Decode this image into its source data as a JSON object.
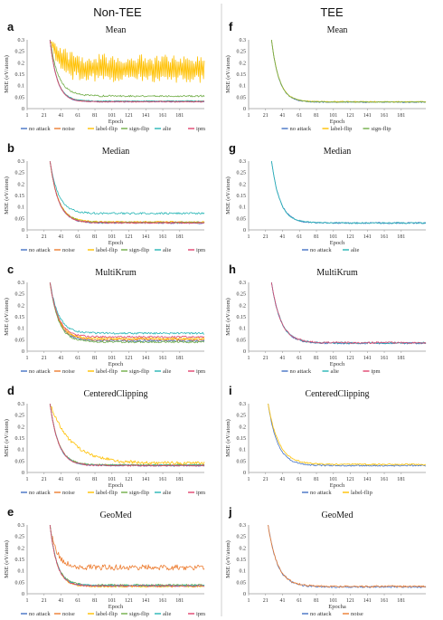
{
  "columns": [
    {
      "title": "Non-TEE"
    },
    {
      "title": "TEE"
    }
  ],
  "colors": {
    "no attack": "#4472c4",
    "noise": "#ed7d31",
    "label-flip": "#ffc000",
    "sign-flip": "#70ad47",
    "alie": "#26b5b5",
    "ipm": "#e0456e"
  },
  "chart_data": [
    {
      "letter": "a",
      "type": "line",
      "title": "Mean",
      "xlabel": "Epoch",
      "ylabel": "MSE (eV/atom)",
      "ylim": [
        0,
        0.3
      ],
      "yticks": [
        "0",
        "0.05",
        "0.1",
        "0.15",
        "0.2",
        "0.25",
        "0.3"
      ],
      "xlim": [
        1,
        210
      ],
      "xticks": [
        "1",
        "21",
        "41",
        "61",
        "81",
        "101",
        "121",
        "141",
        "161",
        "181"
      ],
      "series": [
        {
          "name": "no attack",
          "start": 28,
          "end": 0.03,
          "k": 0.12,
          "noise": 0.002,
          "osc": 0
        },
        {
          "name": "noise",
          "start": 28,
          "end": 0.032,
          "k": 0.12,
          "noise": 0.002,
          "osc": 0
        },
        {
          "name": "label-flip",
          "start": 28,
          "end": 0.175,
          "k": 0.08,
          "noise": 0.01,
          "osc": 0.05
        },
        {
          "name": "sign-flip",
          "start": 28,
          "end": 0.055,
          "k": 0.1,
          "noise": 0.004,
          "osc": 0
        },
        {
          "name": "alie",
          "start": 28,
          "end": 0.033,
          "k": 0.12,
          "noise": 0.002,
          "osc": 0
        },
        {
          "name": "ipm",
          "start": 28,
          "end": 0.03,
          "k": 0.12,
          "noise": 0.002,
          "osc": 0
        }
      ]
    },
    {
      "letter": "b",
      "type": "line",
      "title": "Median",
      "xlabel": "Epoch",
      "ylabel": "MSE (eV/atom)",
      "ylim": [
        0,
        0.3
      ],
      "yticks": [
        "0",
        "0.05",
        "0.1",
        "0.15",
        "0.2",
        "0.25",
        "0.3"
      ],
      "xlim": [
        1,
        210
      ],
      "xticks": [
        "1",
        "21",
        "41",
        "61",
        "81",
        "101",
        "121",
        "141",
        "161",
        "181"
      ],
      "series": [
        {
          "name": "no attack",
          "start": 28,
          "end": 0.03,
          "k": 0.1,
          "noise": 0.003,
          "osc": 0
        },
        {
          "name": "noise",
          "start": 28,
          "end": 0.032,
          "k": 0.1,
          "noise": 0.003,
          "osc": 0
        },
        {
          "name": "label-flip",
          "start": 28,
          "end": 0.035,
          "k": 0.1,
          "noise": 0.003,
          "osc": 0
        },
        {
          "name": "sign-flip",
          "start": 28,
          "end": 0.033,
          "k": 0.1,
          "noise": 0.003,
          "osc": 0
        },
        {
          "name": "alie",
          "start": 28,
          "end": 0.072,
          "k": 0.1,
          "noise": 0.004,
          "osc": 0
        },
        {
          "name": "ipm",
          "start": 28,
          "end": 0.031,
          "k": 0.1,
          "noise": 0.003,
          "osc": 0
        }
      ]
    },
    {
      "letter": "c",
      "type": "line",
      "title": "MultiKrum",
      "xlabel": "Epoch",
      "ylabel": "MSE (eV/atom)",
      "ylim": [
        0,
        0.3
      ],
      "yticks": [
        "0",
        "0.05",
        "0.1",
        "0.15",
        "0.2",
        "0.25",
        "0.3"
      ],
      "xlim": [
        1,
        210
      ],
      "xticks": [
        "1",
        "21",
        "41",
        "61",
        "81",
        "101",
        "121",
        "141",
        "161",
        "181"
      ],
      "series": [
        {
          "name": "no attack",
          "start": 28,
          "end": 0.045,
          "k": 0.1,
          "noise": 0.004,
          "osc": 0
        },
        {
          "name": "noise",
          "start": 28,
          "end": 0.05,
          "k": 0.1,
          "noise": 0.004,
          "osc": 0
        },
        {
          "name": "label-flip",
          "start": 28,
          "end": 0.055,
          "k": 0.1,
          "noise": 0.004,
          "osc": 0
        },
        {
          "name": "sign-flip",
          "start": 28,
          "end": 0.04,
          "k": 0.1,
          "noise": 0.004,
          "osc": 0
        },
        {
          "name": "alie",
          "start": 28,
          "end": 0.078,
          "k": 0.1,
          "noise": 0.004,
          "osc": 0
        },
        {
          "name": "ipm",
          "start": 28,
          "end": 0.062,
          "k": 0.1,
          "noise": 0.004,
          "osc": 0
        }
      ]
    },
    {
      "letter": "d",
      "type": "line",
      "title": "CenteredClipping",
      "xlabel": "Epoch",
      "ylabel": "MSE (eV/atom)",
      "ylim": [
        0,
        0.3
      ],
      "yticks": [
        "0",
        "0.05",
        "0.1",
        "0.15",
        "0.2",
        "0.25",
        "0.3"
      ],
      "xlim": [
        1,
        210
      ],
      "xticks": [
        "1",
        "21",
        "41",
        "61",
        "81",
        "101",
        "121",
        "141",
        "161",
        "181"
      ],
      "series": [
        {
          "name": "no attack",
          "start": 28,
          "end": 0.03,
          "k": 0.1,
          "noise": 0.003,
          "osc": 0
        },
        {
          "name": "noise",
          "start": 28,
          "end": 0.032,
          "k": 0.1,
          "noise": 0.003,
          "osc": 0
        },
        {
          "name": "label-flip",
          "start": 28,
          "end": 0.04,
          "k": 0.04,
          "noise": 0.007,
          "osc": 0
        },
        {
          "name": "sign-flip",
          "start": 28,
          "end": 0.033,
          "k": 0.1,
          "noise": 0.003,
          "osc": 0
        },
        {
          "name": "alie",
          "start": 28,
          "end": 0.031,
          "k": 0.1,
          "noise": 0.003,
          "osc": 0
        },
        {
          "name": "ipm",
          "start": 28,
          "end": 0.03,
          "k": 0.1,
          "noise": 0.003,
          "osc": 0
        }
      ]
    },
    {
      "letter": "e",
      "type": "line",
      "title": "GeoMed",
      "xlabel": "Epoch",
      "ylabel": "MSE (eV/atom)",
      "ylim": [
        0,
        0.3
      ],
      "yticks": [
        "0",
        "0.05",
        "0.1",
        "0.15",
        "0.2",
        "0.25",
        "0.3"
      ],
      "xlim": [
        1,
        210
      ],
      "xticks": [
        "1",
        "21",
        "41",
        "61",
        "81",
        "101",
        "121",
        "141",
        "161",
        "181"
      ],
      "series": [
        {
          "name": "no attack",
          "start": 28,
          "end": 0.035,
          "k": 0.12,
          "noise": 0.004,
          "osc": 0
        },
        {
          "name": "noise",
          "start": 28,
          "end": 0.115,
          "k": 0.12,
          "noise": 0.012,
          "osc": 0
        },
        {
          "name": "label-flip",
          "start": 28,
          "end": 0.032,
          "k": 0.12,
          "noise": 0.004,
          "osc": 0
        },
        {
          "name": "sign-flip",
          "start": 28,
          "end": 0.038,
          "k": 0.12,
          "noise": 0.004,
          "osc": 0
        },
        {
          "name": "alie",
          "start": 28,
          "end": 0.036,
          "k": 0.12,
          "noise": 0.004,
          "osc": 0
        },
        {
          "name": "ipm",
          "start": 28,
          "end": 0.034,
          "k": 0.12,
          "noise": 0.004,
          "osc": 0
        }
      ]
    },
    {
      "letter": "f",
      "type": "line",
      "title": "Mean",
      "xlabel": "Epoch",
      "ylabel": "MSE (eV/atom)",
      "ylim": [
        0,
        0.3
      ],
      "yticks": [
        "0",
        "0.05",
        "0.1",
        "0.15",
        "0.2",
        "0.25",
        "0.3"
      ],
      "xlim": [
        1,
        210
      ],
      "xticks": [
        "1",
        "21",
        "41",
        "61",
        "81",
        "101",
        "121",
        "141",
        "161",
        "181"
      ],
      "series": [
        {
          "name": "no attack",
          "start": 28,
          "end": 0.028,
          "k": 0.11,
          "noise": 0.002,
          "osc": 0
        },
        {
          "name": "label-flip",
          "start": 28,
          "end": 0.03,
          "k": 0.11,
          "noise": 0.002,
          "osc": 0
        },
        {
          "name": "sign-flip",
          "start": 28,
          "end": 0.029,
          "k": 0.11,
          "noise": 0.002,
          "osc": 0
        }
      ]
    },
    {
      "letter": "g",
      "type": "line",
      "title": "Median",
      "xlabel": "Epoch",
      "ylabel": "MSE (eV/atom)",
      "ylim": [
        0,
        0.3
      ],
      "yticks": [
        "0",
        "0.05",
        "0.1",
        "0.15",
        "0.2",
        "0.25",
        "0.3"
      ],
      "xlim": [
        1,
        210
      ],
      "xticks": [
        "1",
        "21",
        "41",
        "61",
        "81",
        "101",
        "121",
        "141",
        "161",
        "181"
      ],
      "series": [
        {
          "name": "no attack",
          "start": 28,
          "end": 0.03,
          "k": 0.1,
          "noise": 0.003,
          "osc": 0
        },
        {
          "name": "alie",
          "start": 28,
          "end": 0.03,
          "k": 0.1,
          "noise": 0.003,
          "osc": 0
        }
      ]
    },
    {
      "letter": "h",
      "type": "line",
      "title": "MultiKrum",
      "xlabel": "Epoch",
      "ylabel": "MSE (eV/atom)",
      "ylim": [
        0,
        0.3
      ],
      "yticks": [
        "0",
        "0.05",
        "0.1",
        "0.15",
        "0.2",
        "0.25",
        "0.3"
      ],
      "xlim": [
        1,
        210
      ],
      "xticks": [
        "1",
        "21",
        "41",
        "61",
        "81",
        "101",
        "121",
        "141",
        "161",
        "181"
      ],
      "series": [
        {
          "name": "no attack",
          "start": 28,
          "end": 0.035,
          "k": 0.09,
          "noise": 0.004,
          "osc": 0
        },
        {
          "name": "alie",
          "start": 28,
          "end": 0.036,
          "k": 0.09,
          "noise": 0.004,
          "osc": 0
        },
        {
          "name": "ipm",
          "start": 28,
          "end": 0.037,
          "k": 0.09,
          "noise": 0.004,
          "osc": 0
        }
      ]
    },
    {
      "letter": "i",
      "type": "line",
      "title": "CenteredClipping",
      "xlabel": "Epoch",
      "ylabel": "MSE (eV/atom)",
      "ylim": [
        0,
        0.3
      ],
      "yticks": [
        "0",
        "0.05",
        "0.1",
        "0.15",
        "0.2",
        "0.25",
        "0.3"
      ],
      "xlim": [
        1,
        210
      ],
      "xticks": [
        "1",
        "21",
        "41",
        "61",
        "81",
        "101",
        "121",
        "141",
        "161",
        "181"
      ],
      "series": [
        {
          "name": "no attack",
          "start": 24,
          "end": 0.03,
          "k": 0.09,
          "noise": 0.003,
          "osc": 0
        },
        {
          "name": "label-flip",
          "start": 24,
          "end": 0.035,
          "k": 0.08,
          "noise": 0.003,
          "osc": 0
        }
      ]
    },
    {
      "letter": "j",
      "type": "line",
      "title": "GeoMed",
      "xlabel": "Epocha",
      "ylabel": "MSE (eV/atom)",
      "ylim": [
        0,
        0.3
      ],
      "yticks": [
        "0",
        "0.05",
        "0.1",
        "0.15",
        "0.2",
        "0.25",
        "0.3"
      ],
      "xlim": [
        1,
        210
      ],
      "xticks": [
        "1",
        "21",
        "41",
        "61",
        "81",
        "101",
        "121",
        "141",
        "161",
        "181"
      ],
      "series": [
        {
          "name": "no attack",
          "start": 24,
          "end": 0.03,
          "k": 0.09,
          "noise": 0.004,
          "osc": 0
        },
        {
          "name": "noise",
          "start": 24,
          "end": 0.032,
          "k": 0.09,
          "noise": 0.004,
          "osc": 0
        }
      ]
    }
  ]
}
